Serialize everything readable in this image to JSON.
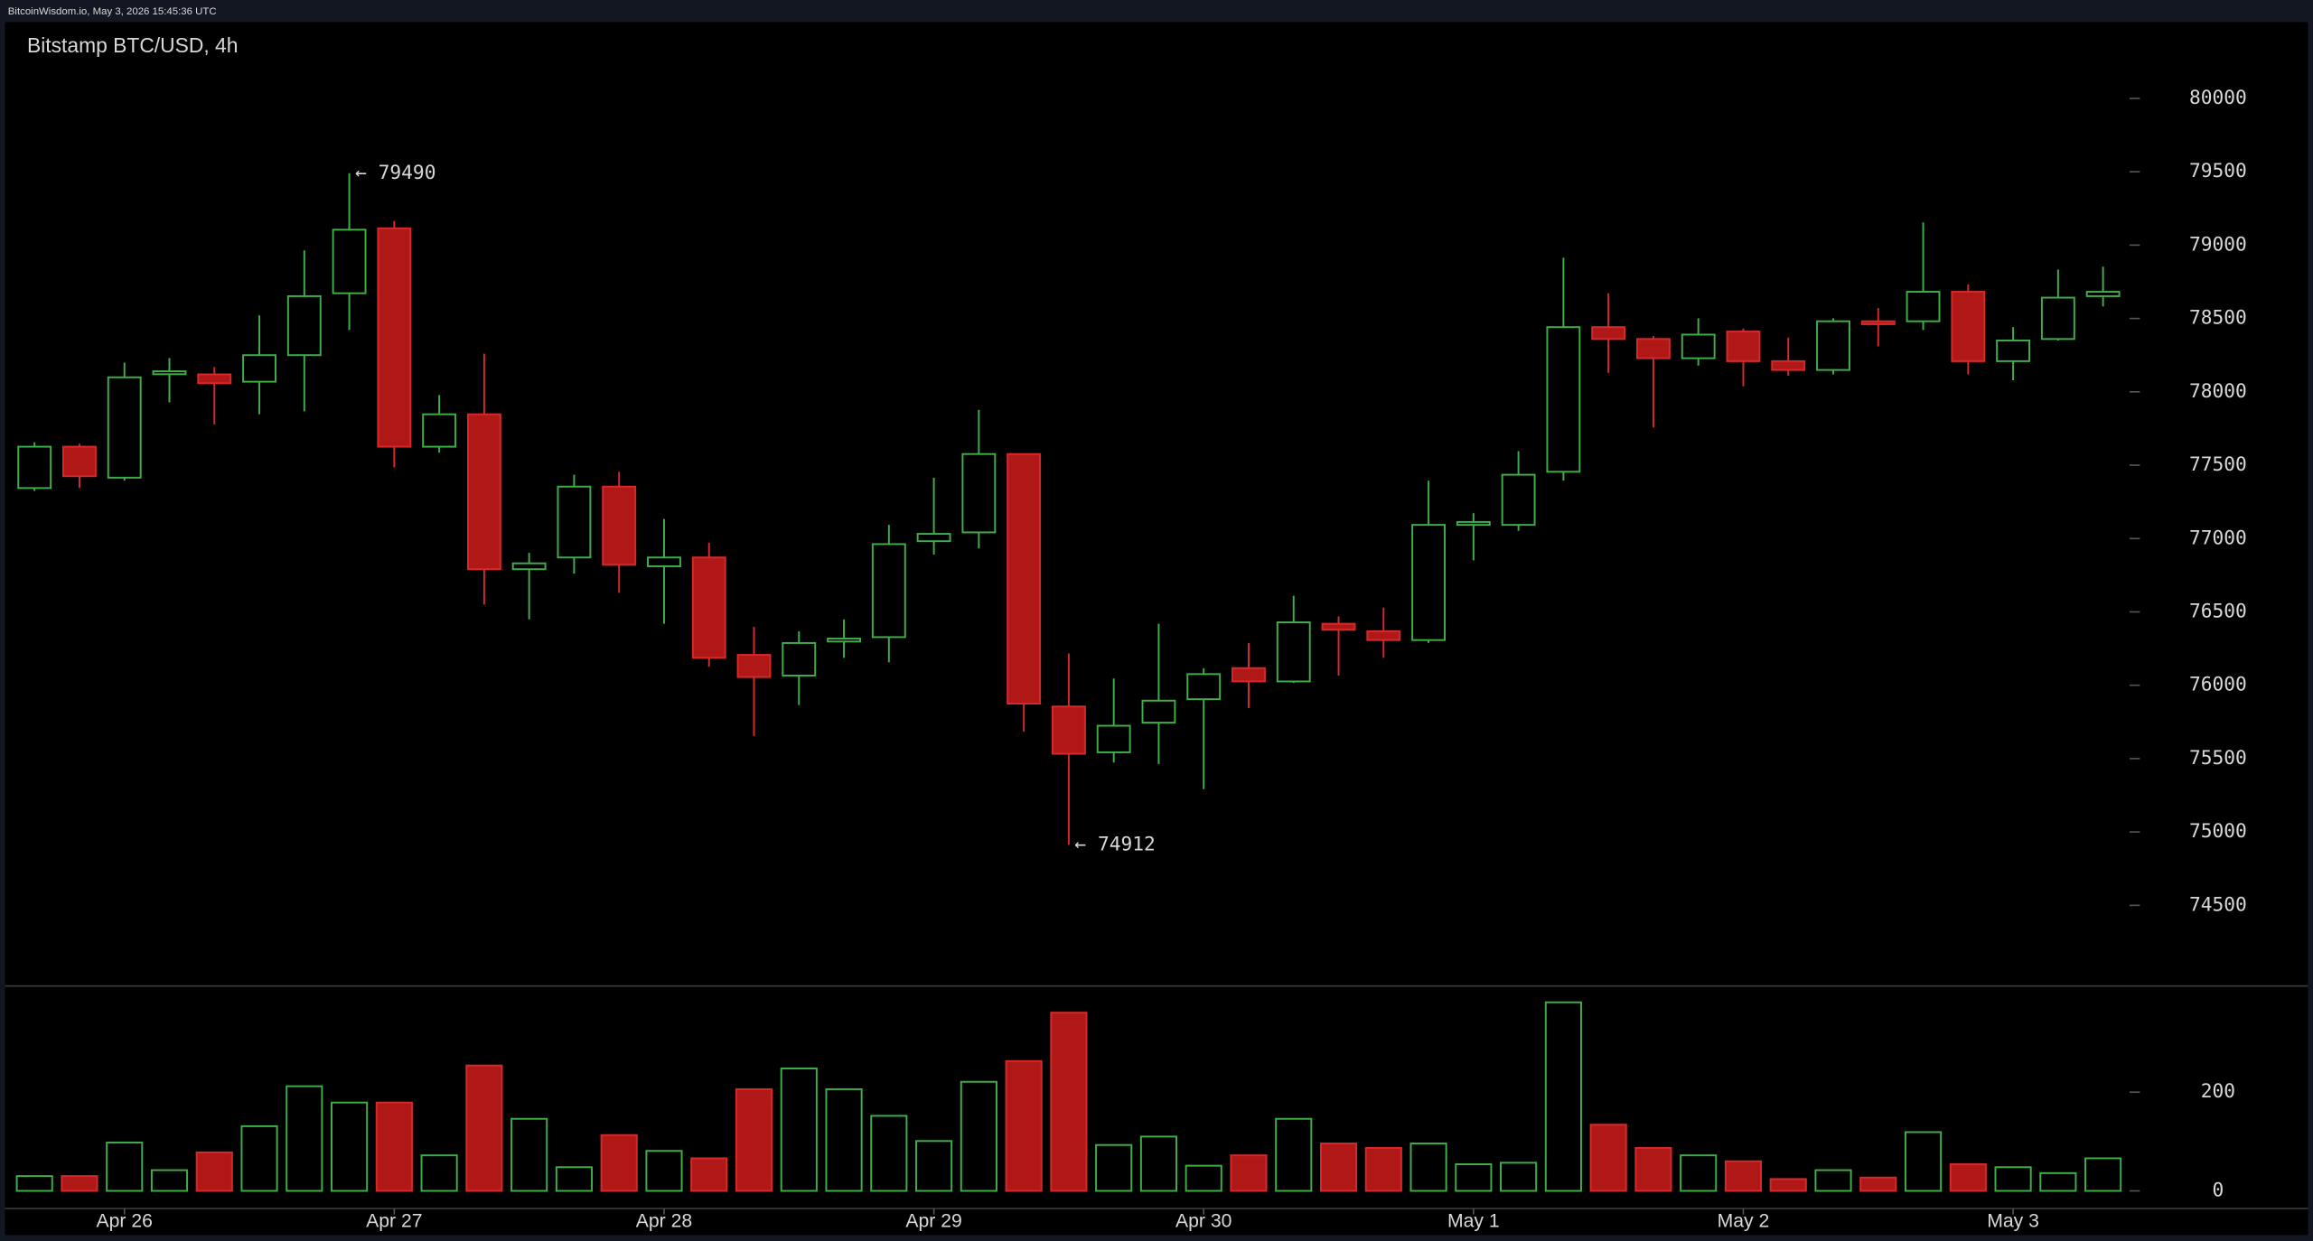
{
  "header": {
    "source": "BitcoinWisdom.io, May 3, 2026 15:45:36 UTC"
  },
  "chart_data": [
    {
      "type": "candlestick",
      "title": "Bitstamp BTC/USD, 4h",
      "categories": [
        null,
        null,
        "Apr 26",
        null,
        null,
        null,
        null,
        null,
        "Apr 27",
        null,
        null,
        null,
        null,
        null,
        "Apr 28",
        null,
        null,
        null,
        null,
        null,
        "Apr 29",
        null,
        null,
        null,
        null,
        null,
        "Apr 30",
        null,
        null,
        null,
        null,
        null,
        "May 1",
        null,
        null,
        null,
        null,
        null,
        "May 2",
        null,
        null,
        null,
        null,
        null,
        "May 3",
        null,
        null
      ],
      "open": [
        77344,
        77626,
        77415,
        78120,
        78119,
        78069,
        78250,
        78672,
        79115,
        77626,
        77847,
        76791,
        76871,
        77354,
        76811,
        76871,
        76207,
        76066,
        76298,
        76328,
        76982,
        77042,
        77576,
        75855,
        75543,
        75745,
        75905,
        76117,
        76026,
        76419,
        76368,
        76308,
        77093,
        77093,
        77455,
        78441,
        78360,
        78229,
        78411,
        78209,
        78149,
        78481,
        78481,
        78682,
        78209,
        78360,
        78652
      ],
      "high": [
        77656,
        77646,
        78199,
        78230,
        78169,
        78521,
        78964,
        79490,
        79165,
        77978,
        78260,
        76902,
        77435,
        77455,
        77133,
        76972,
        76398,
        76368,
        76449,
        77093,
        77415,
        77877,
        77576,
        76217,
        76046,
        76419,
        76117,
        76288,
        76610,
        76469,
        76529,
        77394,
        77173,
        77596,
        78914,
        78672,
        78380,
        78501,
        78431,
        78370,
        78501,
        78571,
        79155,
        78732,
        78441,
        78833,
        78853
      ],
      "low": [
        77324,
        77344,
        77395,
        77928,
        77777,
        77847,
        77867,
        78421,
        77485,
        77586,
        76549,
        76449,
        76761,
        76630,
        76419,
        76127,
        75654,
        75865,
        76187,
        76157,
        76891,
        76932,
        75684,
        74912,
        75473,
        75463,
        75292,
        75845,
        76016,
        76066,
        76187,
        76288,
        76851,
        77052,
        77395,
        78129,
        77757,
        78179,
        78038,
        78109,
        78119,
        78310,
        78421,
        78119,
        78079,
        78350,
        78582
      ],
      "close": [
        77626,
        77425,
        78099,
        78140,
        78059,
        78250,
        78652,
        79105,
        77626,
        77847,
        76791,
        76831,
        77354,
        76821,
        76871,
        76187,
        76056,
        76288,
        76318,
        76962,
        77032,
        77576,
        75875,
        75533,
        75724,
        75895,
        76076,
        76026,
        76429,
        76378,
        76308,
        77093,
        77113,
        77435,
        78441,
        78360,
        78229,
        78390,
        78209,
        78149,
        78481,
        78461,
        78682,
        78209,
        78350,
        78642,
        78682
      ],
      "up_color": "#3fae49",
      "down_color": "#b01818",
      "down_edge": "#d62a2a",
      "ylim": [
        73950,
        80520
      ],
      "yticks": [
        74500,
        75000,
        75500,
        76000,
        76500,
        77000,
        77500,
        78000,
        78500,
        79000,
        79500,
        80000
      ],
      "annotations": [
        {
          "text": "← 79490",
          "value": 79490
        },
        {
          "text": "← 74912",
          "value": 74912
        }
      ]
    },
    {
      "type": "volume",
      "values": [
        30,
        30,
        98,
        42,
        78,
        131,
        212,
        179,
        179,
        72,
        254,
        146,
        48,
        113,
        81,
        66,
        206,
        248,
        206,
        152,
        101,
        221,
        263,
        361,
        93,
        110,
        51,
        72,
        146,
        96,
        87,
        96,
        54,
        57,
        382,
        134,
        87,
        72,
        60,
        24,
        42,
        27,
        119,
        54,
        48,
        36,
        66
      ],
      "ylim": [
        0,
        415
      ],
      "yticks": [
        0,
        200
      ]
    }
  ]
}
